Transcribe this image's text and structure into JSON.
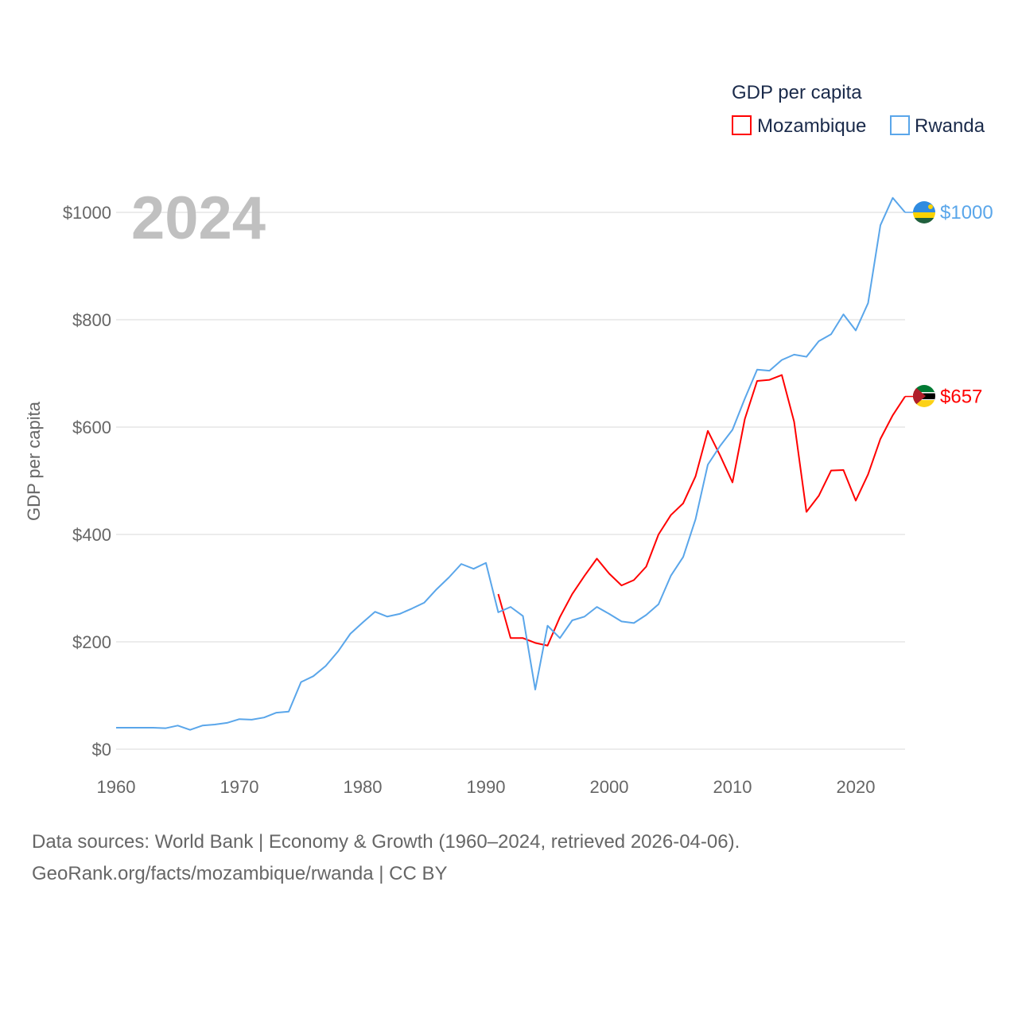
{
  "chart_data": {
    "type": "line",
    "title": "",
    "year_label": "2024",
    "xlabel": "",
    "ylabel": "GDP per capita",
    "xlim": [
      1960,
      2024
    ],
    "ylim": [
      0,
      1000
    ],
    "x_ticks": [
      1960,
      1970,
      1980,
      1990,
      2000,
      2010,
      2020
    ],
    "x_tick_labels": [
      "1960",
      "1970",
      "1980",
      "1990",
      "2000",
      "2010",
      "2020"
    ],
    "y_ticks": [
      0,
      200,
      400,
      600,
      800,
      1000
    ],
    "y_tick_labels": [
      "$0",
      "$200",
      "$400",
      "$600",
      "$800",
      "$1000"
    ],
    "grid": true,
    "legend": {
      "title": "GDP per capita",
      "placement": "top-right"
    },
    "series": [
      {
        "name": "Mozambique",
        "color": "#ff0000",
        "end_label": "$657",
        "flag": "mozambique-flag",
        "start_year": 1991,
        "values": [
          289,
          207,
          207,
          198,
          193,
          246,
          289,
          323,
          355,
          327,
          305,
          315,
          340,
          400,
          436,
          458,
          508,
          593,
          547,
          497,
          615,
          686,
          688,
          697,
          610,
          442,
          472,
          519,
          520,
          463,
          512,
          578,
          622,
          657
        ]
      },
      {
        "name": "Rwanda",
        "color": "#5aa6ea",
        "end_label": "$1000",
        "flag": "rwanda-flag",
        "start_year": 1960,
        "values": [
          40,
          40,
          40,
          40,
          39,
          44,
          36,
          44,
          46,
          49,
          56,
          55,
          59,
          68,
          70,
          125,
          136,
          155,
          182,
          215,
          236,
          256,
          247,
          252,
          262,
          273,
          298,
          320,
          345,
          336,
          347,
          255,
          265,
          248,
          111,
          230,
          207,
          240,
          247,
          265,
          252,
          238,
          235,
          250,
          270,
          323,
          358,
          428,
          530,
          565,
          595,
          653,
          707,
          705,
          725,
          735,
          731,
          760,
          773,
          810,
          780,
          831,
          976,
          1027,
          1000
        ]
      }
    ]
  },
  "footer": {
    "line1": "Data sources: World Bank | Economy & Growth (1960–2024, retrieved 2026-04-06).",
    "line2": "GeoRank.org/facts/mozambique/rwanda | CC BY"
  }
}
